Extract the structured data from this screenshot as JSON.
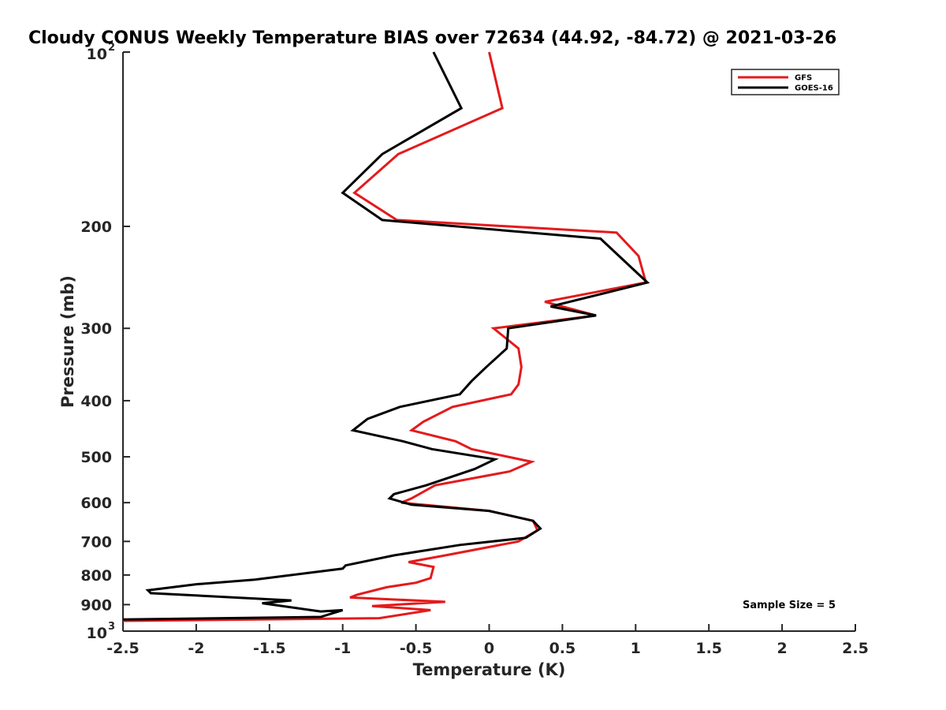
{
  "chart_data": {
    "type": "line",
    "title": "Cloudy CONUS Weekly Temperature BIAS over 72634 (44.92, -84.72) @ 2021-03-26",
    "xlabel": "Temperature (K)",
    "ylabel": "Pressure (mb)",
    "xlim": [
      -2.5,
      2.5
    ],
    "ylim": [
      100,
      1000
    ],
    "y_scale": "log",
    "y_reversed": true,
    "grid": false,
    "legend_position": "top-right",
    "x_ticks": [
      "-2.5",
      "-2",
      "-1.5",
      "-1",
      "-0.5",
      "0",
      "0.5",
      "1",
      "1.5",
      "2",
      "2.5"
    ],
    "y_ticks": [
      {
        "value": 100,
        "base": "10",
        "exp": "2",
        "label": ""
      },
      {
        "value": 200,
        "label": "200"
      },
      {
        "value": 300,
        "label": "300"
      },
      {
        "value": 400,
        "label": "400"
      },
      {
        "value": 500,
        "label": "500"
      },
      {
        "value": 600,
        "label": "600"
      },
      {
        "value": 700,
        "label": "700"
      },
      {
        "value": 800,
        "label": "800"
      },
      {
        "value": 900,
        "label": "900"
      },
      {
        "value": 1000,
        "base": "10",
        "exp": "3",
        "label": ""
      }
    ],
    "annotation": "Sample Size = 5",
    "series": [
      {
        "name": "GFS",
        "color": "#e41a1c",
        "points": [
          [
            0.0,
            100
          ],
          [
            0.09,
            125
          ],
          [
            -0.62,
            150
          ],
          [
            -0.92,
            175
          ],
          [
            -0.63,
            195
          ],
          [
            0.87,
            205
          ],
          [
            1.02,
            225
          ],
          [
            1.07,
            250
          ],
          [
            0.38,
            270
          ],
          [
            0.73,
            285
          ],
          [
            0.03,
            300
          ],
          [
            0.2,
            325
          ],
          [
            0.22,
            350
          ],
          [
            0.2,
            375
          ],
          [
            0.15,
            390
          ],
          [
            -0.25,
            410
          ],
          [
            -0.45,
            435
          ],
          [
            -0.53,
            450
          ],
          [
            -0.23,
            470
          ],
          [
            -0.12,
            485
          ],
          [
            0.29,
            510
          ],
          [
            0.14,
            530
          ],
          [
            -0.37,
            560
          ],
          [
            -0.53,
            590
          ],
          [
            -0.6,
            600
          ],
          [
            0.0,
            620
          ],
          [
            0.3,
            645
          ],
          [
            0.33,
            670
          ],
          [
            0.2,
            700
          ],
          [
            -0.3,
            740
          ],
          [
            -0.55,
            760
          ],
          [
            -0.38,
            775
          ],
          [
            -0.4,
            810
          ],
          [
            -0.5,
            825
          ],
          [
            -0.7,
            840
          ],
          [
            -0.9,
            865
          ],
          [
            -0.95,
            875
          ],
          [
            -0.3,
            890
          ],
          [
            -0.8,
            905
          ],
          [
            -0.4,
            920
          ],
          [
            -0.75,
            950
          ],
          [
            -2.5,
            960
          ]
        ]
      },
      {
        "name": "GOES-16",
        "color": "#000000",
        "points": [
          [
            -0.38,
            100
          ],
          [
            -0.19,
            125
          ],
          [
            -0.73,
            150
          ],
          [
            -1.0,
            175
          ],
          [
            -0.73,
            195
          ],
          [
            0.76,
            210
          ],
          [
            1.08,
            250
          ],
          [
            0.42,
            275
          ],
          [
            0.73,
            285
          ],
          [
            0.13,
            300
          ],
          [
            0.12,
            325
          ],
          [
            -0.02,
            350
          ],
          [
            -0.12,
            370
          ],
          [
            -0.2,
            390
          ],
          [
            -0.61,
            410
          ],
          [
            -0.83,
            430
          ],
          [
            -0.93,
            450
          ],
          [
            -0.59,
            470
          ],
          [
            -0.39,
            485
          ],
          [
            0.04,
            505
          ],
          [
            -0.1,
            525
          ],
          [
            -0.43,
            560
          ],
          [
            -0.65,
            580
          ],
          [
            -0.68,
            590
          ],
          [
            -0.53,
            605
          ],
          [
            0.0,
            620
          ],
          [
            0.3,
            645
          ],
          [
            0.35,
            665
          ],
          [
            0.25,
            690
          ],
          [
            -0.2,
            710
          ],
          [
            -0.65,
            740
          ],
          [
            -0.98,
            770
          ],
          [
            -1.0,
            780
          ],
          [
            -1.6,
            815
          ],
          [
            -2.0,
            830
          ],
          [
            -2.33,
            850
          ],
          [
            -2.31,
            860
          ],
          [
            -1.35,
            885
          ],
          [
            -1.55,
            895
          ],
          [
            -1.15,
            925
          ],
          [
            -1.0,
            920
          ],
          [
            -1.15,
            945
          ],
          [
            -2.5,
            955
          ]
        ]
      }
    ]
  }
}
